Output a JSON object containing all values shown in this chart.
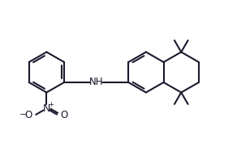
{
  "bg_color": "#ffffff",
  "line_color": "#1a1a2e",
  "line_width": 1.5,
  "font_size": 8.5,
  "figsize": [
    2.92,
    1.82
  ],
  "dpi": 100,
  "xlim": [
    0.0,
    5.6
  ],
  "ylim": [
    -0.85,
    1.35
  ]
}
